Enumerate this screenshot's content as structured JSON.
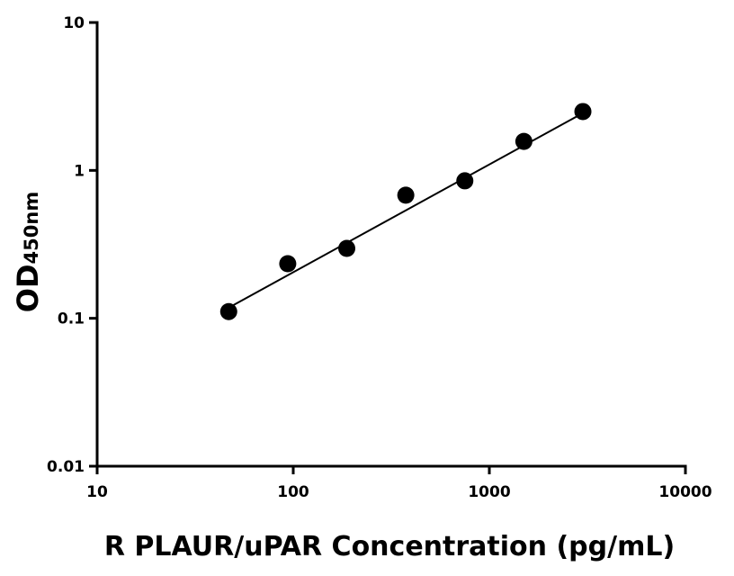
{
  "chart_data": {
    "type": "scatter",
    "x_label": "R PLAUR/uPAR Concentration (pg/mL)",
    "y_label": "OD",
    "y_label_sub": "450nm",
    "x": [
      46.875,
      93.75,
      187.5,
      375,
      750,
      1500,
      3000
    ],
    "values": [
      0.111,
      0.234,
      0.297,
      0.68,
      0.85,
      1.57,
      2.5
    ],
    "color": "#000000",
    "fit_line": {
      "x": [
        46.875,
        3000
      ],
      "values": [
        0.118,
        2.44
      ]
    },
    "xlim": [
      10,
      10000
    ],
    "ylim": [
      0.01,
      10
    ],
    "xticks": [
      10,
      100,
      1000,
      10000
    ],
    "yticks": [
      0.01,
      0.1,
      1,
      10
    ],
    "xscale": "log",
    "yscale": "log",
    "grid": false
  }
}
